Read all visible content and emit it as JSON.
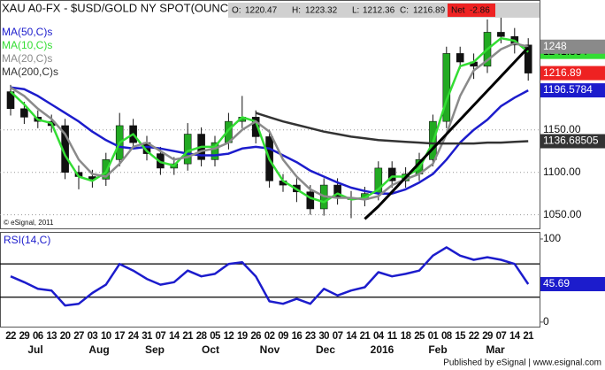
{
  "chart_data": [
    {
      "type": "candlestick",
      "title": "XAU A0-FX - $USD/GOLD NY SPOT(OUNC",
      "quote": [
        {
          "label": "O:",
          "value": 1220.47
        },
        {
          "label": "H:",
          "value": 1223.32
        },
        {
          "label": "L:",
          "value": 1212.36
        },
        {
          "label": "C:",
          "value": 1216.89
        }
      ],
      "net": {
        "label": "Net",
        "value": -2.86
      },
      "categories": [
        "22",
        "29",
        "06",
        "13",
        "20",
        "27",
        "03",
        "10",
        "17",
        "24",
        "31",
        "07",
        "14",
        "21",
        "28",
        "05",
        "12",
        "19",
        "26",
        "02",
        "09",
        "16",
        "23",
        "30",
        "07",
        "14",
        "21",
        "04",
        "11",
        "18",
        "25",
        "01",
        "08",
        "15",
        "22",
        "29",
        "07",
        "14",
        "21"
      ],
      "months": [
        "Jul",
        "Aug",
        "Sep",
        "Oct",
        "Nov",
        "Dec",
        "2016",
        "Feb",
        "Mar"
      ],
      "open": [
        1195,
        1175,
        1165,
        1160,
        1155,
        1100,
        1095,
        1092,
        1115,
        1155,
        1135,
        1122,
        1105,
        1110,
        1145,
        1115,
        1135,
        1160,
        1165,
        1142,
        1090,
        1085,
        1077,
        1057,
        1085,
        1070,
        1068,
        1075,
        1105,
        1090,
        1098,
        1115,
        1160,
        1240,
        1230,
        1225,
        1265,
        1260,
        1250
      ],
      "high": [
        1203,
        1183,
        1173,
        1168,
        1163,
        1108,
        1103,
        1123,
        1170,
        1163,
        1143,
        1130,
        1118,
        1158,
        1153,
        1143,
        1170,
        1190,
        1173,
        1150,
        1098,
        1093,
        1085,
        1093,
        1093,
        1078,
        1083,
        1113,
        1113,
        1106,
        1123,
        1168,
        1248,
        1248,
        1240,
        1280,
        1287,
        1270,
        1258
      ],
      "low": [
        1167,
        1157,
        1152,
        1147,
        1092,
        1080,
        1082,
        1084,
        1107,
        1127,
        1114,
        1097,
        1097,
        1102,
        1107,
        1107,
        1127,
        1152,
        1134,
        1082,
        1077,
        1065,
        1050,
        1049,
        1062,
        1046,
        1060,
        1067,
        1082,
        1082,
        1090,
        1107,
        1152,
        1222,
        1210,
        1217,
        1252,
        1240,
        1208
      ],
      "close": [
        1175,
        1165,
        1160,
        1155,
        1100,
        1095,
        1092,
        1115,
        1155,
        1135,
        1122,
        1105,
        1110,
        1145,
        1115,
        1135,
        1160,
        1165,
        1142,
        1090,
        1085,
        1077,
        1057,
        1085,
        1070,
        1068,
        1075,
        1105,
        1090,
        1098,
        1115,
        1160,
        1240,
        1230,
        1225,
        1265,
        1260,
        1250,
        1216.89
      ],
      "up_color": "#22aa22",
      "down_color": "#111111",
      "close_tag_color": "#ee2222",
      "series": [
        {
          "name": "MA(50,C)s",
          "color": "#1c1ccc",
          "values": [
            1200,
            1198,
            1190,
            1180,
            1170,
            1160,
            1148,
            1138,
            1130,
            1128,
            1130,
            1128,
            1125,
            1122,
            1120,
            1120,
            1122,
            1128,
            1130,
            1128,
            1120,
            1112,
            1102,
            1095,
            1088,
            1082,
            1078,
            1075,
            1075,
            1080,
            1088,
            1098,
            1115,
            1135,
            1150,
            1162,
            1178,
            1188,
            1196.5784
          ]
        },
        {
          "name": "MA(10,C)s",
          "color": "#33dd33",
          "values": [
            1195,
            1180,
            1162,
            1158,
            1120,
            1095,
            1090,
            1100,
            1135,
            1145,
            1125,
            1112,
            1108,
            1125,
            1130,
            1130,
            1150,
            1165,
            1160,
            1115,
            1090,
            1080,
            1070,
            1065,
            1075,
            1068,
            1070,
            1080,
            1095,
            1095,
            1105,
            1135,
            1185,
            1225,
            1230,
            1245,
            1258,
            1255,
            1241.834
          ]
        },
        {
          "name": "MA(20,C)s",
          "color": "#8a8a8a",
          "values": [
            1200,
            1190,
            1175,
            1163,
            1145,
            1115,
            1098,
            1095,
            1110,
            1130,
            1135,
            1125,
            1115,
            1118,
            1125,
            1128,
            1135,
            1150,
            1160,
            1148,
            1115,
            1095,
            1080,
            1072,
            1070,
            1070,
            1068,
            1072,
            1085,
            1092,
            1098,
            1110,
            1145,
            1190,
            1220,
            1232,
            1245,
            1252,
            1248
          ]
        },
        {
          "name": "MA(200,C)s",
          "color": "#333333",
          "values": [
            null,
            null,
            null,
            null,
            null,
            null,
            null,
            null,
            null,
            null,
            null,
            null,
            null,
            null,
            null,
            null,
            null,
            null,
            1170,
            1165,
            1160,
            1156,
            1152,
            1148,
            1145,
            1142,
            1140,
            1138,
            1137,
            1136,
            1135,
            1134,
            1134,
            1134,
            1134,
            1135,
            1135,
            1136,
            1136.68505
          ]
        }
      ],
      "trendline": {
        "color": "#000000",
        "values": [
          null,
          null,
          null,
          null,
          null,
          null,
          null,
          null,
          null,
          null,
          null,
          null,
          null,
          null,
          null,
          null,
          null,
          null,
          null,
          null,
          null,
          null,
          null,
          null,
          null,
          null,
          1045,
          1060,
          1077,
          1094,
          1111,
          1128,
          1145,
          1162,
          1179,
          1196,
          1213,
          1230,
          1247
        ]
      },
      "ylim": [
        1034,
        1303
      ],
      "yticks": [
        {
          "value": 1050,
          "label": "1050.00"
        },
        {
          "value": 1100,
          "label": "1100.00"
        },
        {
          "value": 1150,
          "label": "1150.00"
        }
      ],
      "grid": true,
      "copyright": "© eSignal, 2011"
    },
    {
      "type": "line",
      "title": "RSI(14,C)",
      "series": [
        {
          "name": "RSI(14,C)",
          "color": "#1c1ccc",
          "values": [
            55,
            48,
            40,
            38,
            20,
            22,
            35,
            45,
            70,
            62,
            52,
            45,
            48,
            62,
            55,
            58,
            70,
            72,
            55,
            25,
            22,
            28,
            22,
            40,
            32,
            38,
            42,
            60,
            55,
            58,
            62,
            80,
            90,
            80,
            75,
            78,
            75,
            70,
            45.69
          ]
        }
      ],
      "levels": [
        70,
        30
      ],
      "ylim": [
        -6.5,
        108.5
      ],
      "yticks": [
        0,
        100
      ]
    }
  ],
  "footer": "Published by eSignal | www.esignal.com"
}
